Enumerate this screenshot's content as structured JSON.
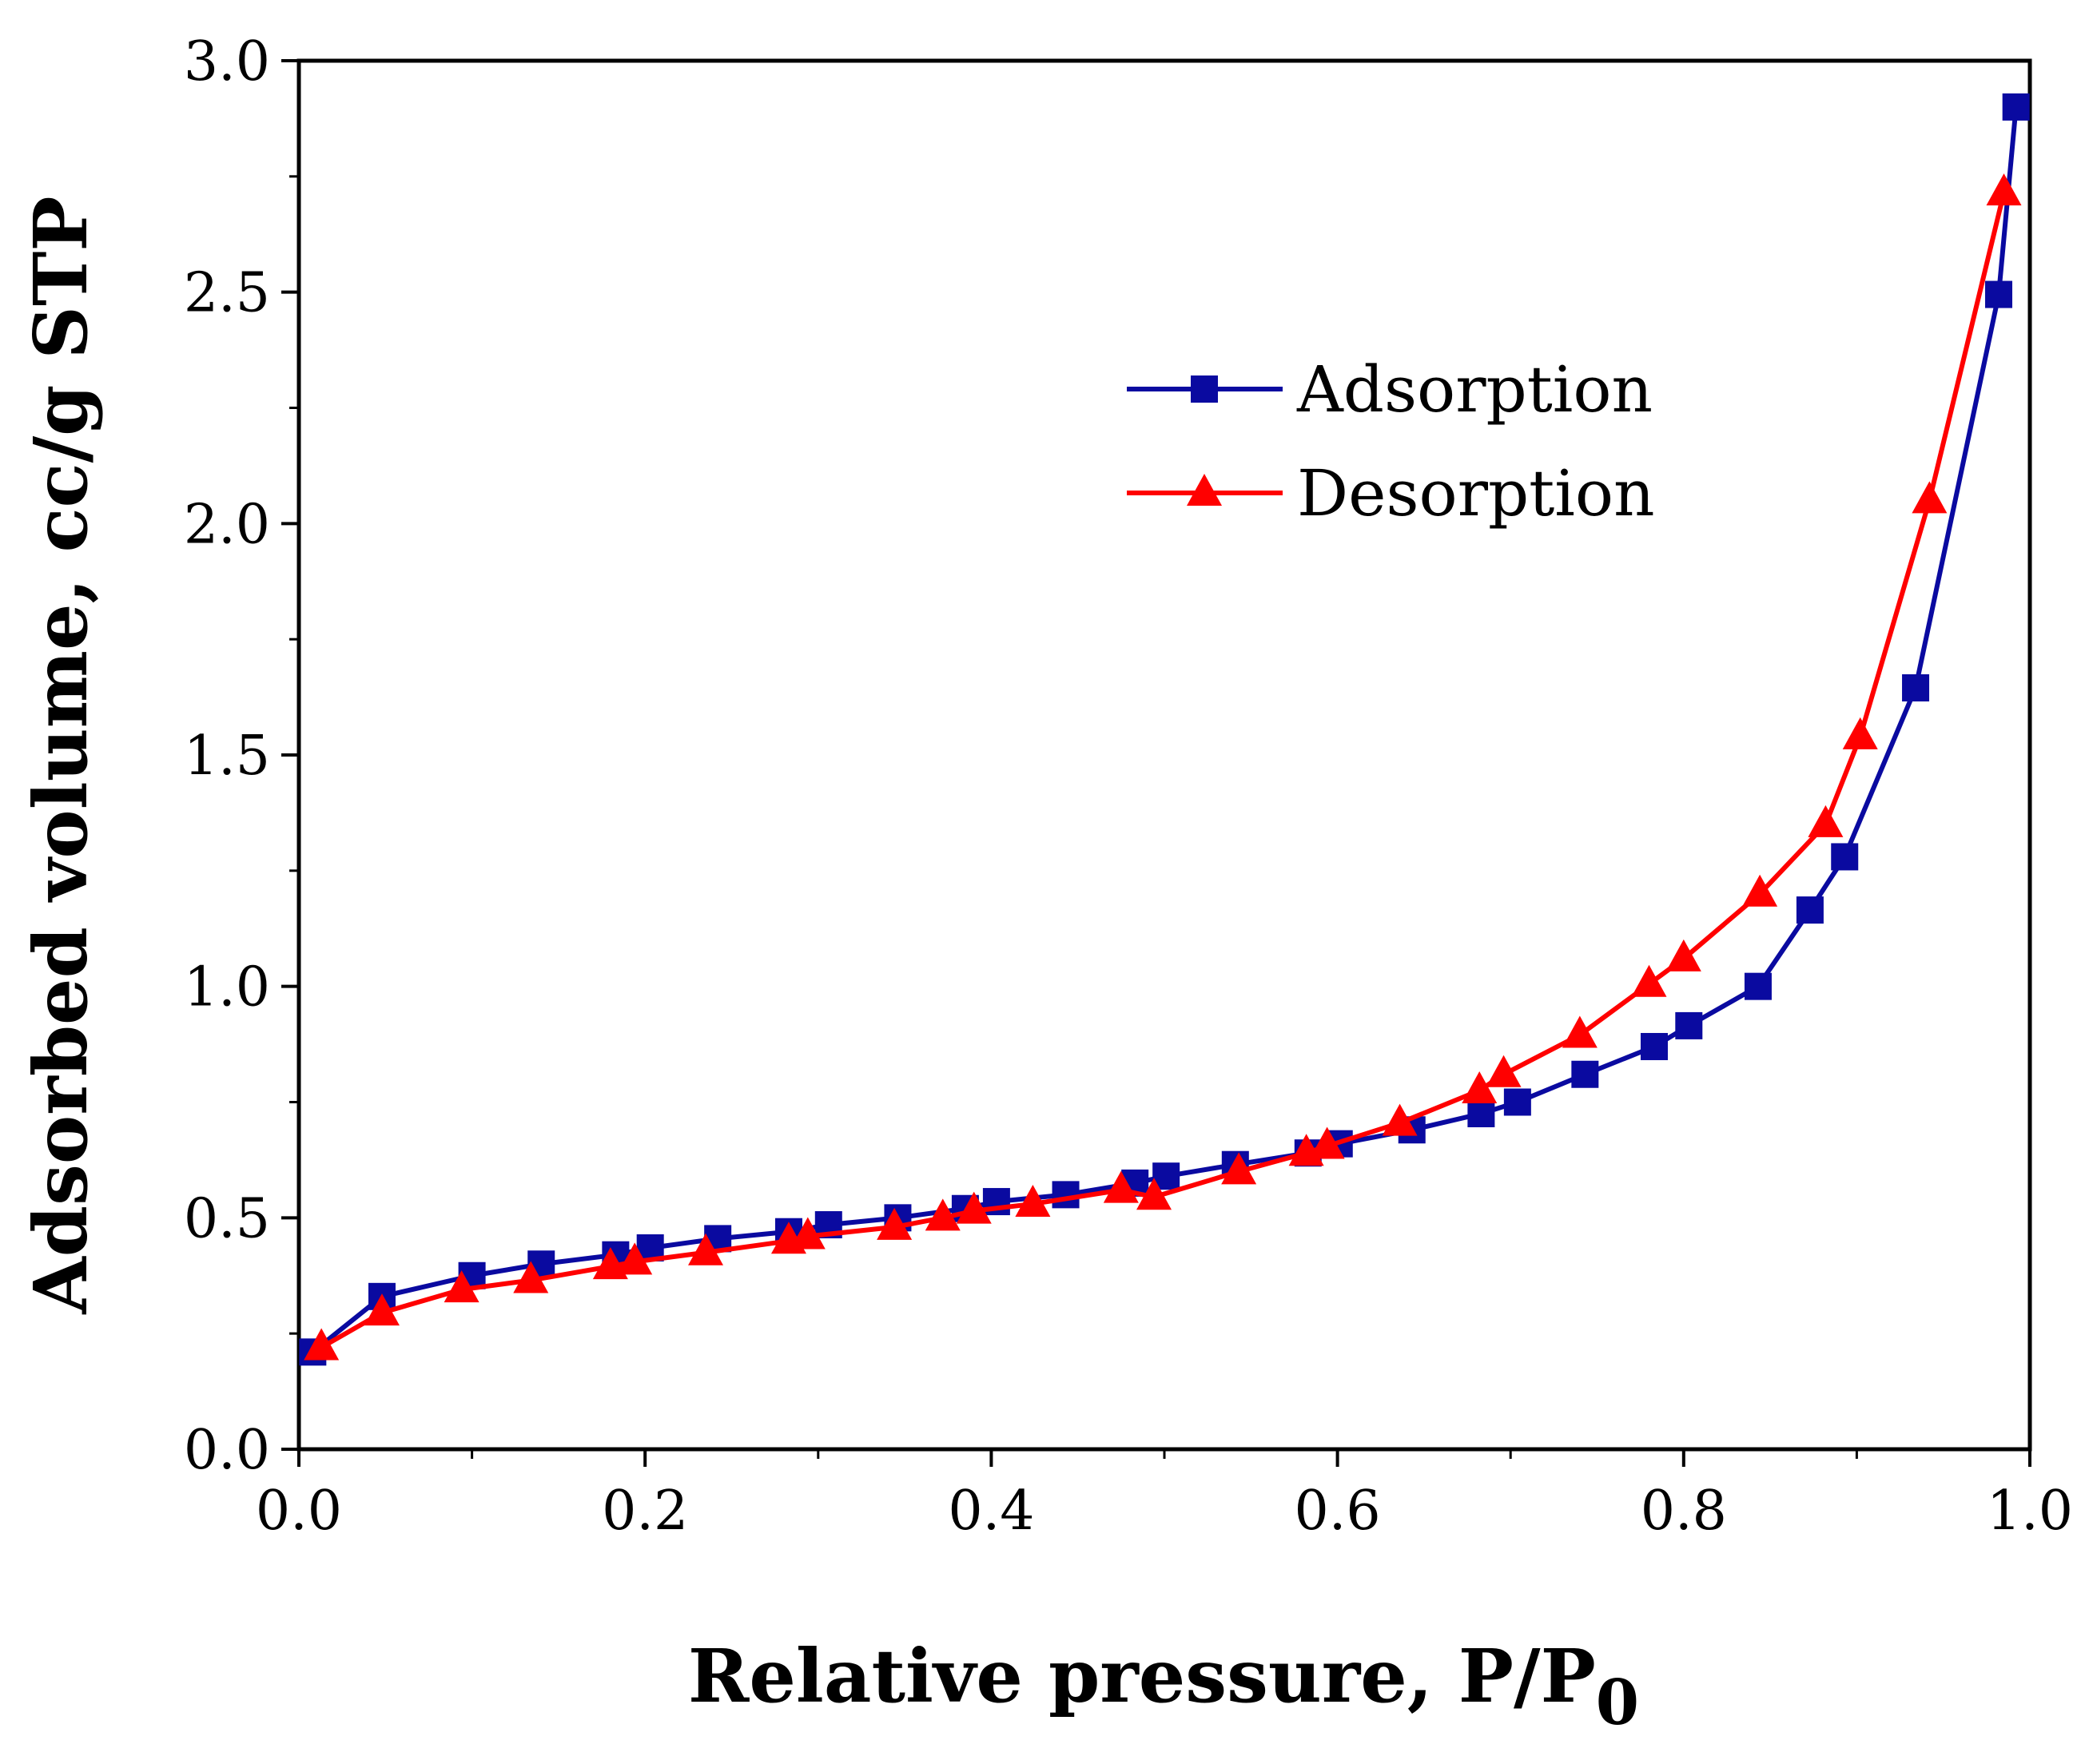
{
  "chart_data": {
    "type": "line",
    "xlabel": "Relative pressure, P/P",
    "xlabel_subscript": "0",
    "ylabel": "Adsorbed volume, cc/g STP",
    "xlim": [
      0.0,
      1.0
    ],
    "ylim": [
      0.0,
      3.0
    ],
    "xticks": [
      "0.0",
      "0.2",
      "0.4",
      "0.6",
      "0.8",
      "1.0"
    ],
    "yticks": [
      "0.0",
      "0.5",
      "1.0",
      "1.5",
      "2.0",
      "2.5",
      "3.0"
    ],
    "grid": false,
    "legend_position": "upper-center",
    "series": [
      {
        "name": "Adsorption",
        "color": "#0a0aa0",
        "marker": "square",
        "points": [
          [
            0.008,
            0.21
          ],
          [
            0.048,
            0.33
          ],
          [
            0.1,
            0.375
          ],
          [
            0.14,
            0.4
          ],
          [
            0.183,
            0.42
          ],
          [
            0.203,
            0.435
          ],
          [
            0.242,
            0.455
          ],
          [
            0.283,
            0.47
          ],
          [
            0.306,
            0.485
          ],
          [
            0.346,
            0.5
          ],
          [
            0.385,
            0.52
          ],
          [
            0.403,
            0.535
          ],
          [
            0.443,
            0.55
          ],
          [
            0.483,
            0.575
          ],
          [
            0.501,
            0.59
          ],
          [
            0.541,
            0.615
          ],
          [
            0.583,
            0.64
          ],
          [
            0.601,
            0.66
          ],
          [
            0.643,
            0.69
          ],
          [
            0.683,
            0.725
          ],
          [
            0.704,
            0.75
          ],
          [
            0.743,
            0.81
          ],
          [
            0.783,
            0.87
          ],
          [
            0.803,
            0.915
          ],
          [
            0.843,
            1.0
          ],
          [
            0.873,
            1.165
          ],
          [
            0.893,
            1.28
          ],
          [
            0.934,
            1.645
          ],
          [
            0.982,
            2.495
          ],
          [
            0.992,
            2.9
          ]
        ]
      },
      {
        "name": "Desorption",
        "color": "#ff0000",
        "marker": "triangle",
        "points": [
          [
            0.013,
            0.22
          ],
          [
            0.048,
            0.295
          ],
          [
            0.094,
            0.345
          ],
          [
            0.134,
            0.365
          ],
          [
            0.18,
            0.395
          ],
          [
            0.194,
            0.405
          ],
          [
            0.235,
            0.425
          ],
          [
            0.283,
            0.45
          ],
          [
            0.294,
            0.46
          ],
          [
            0.344,
            0.48
          ],
          [
            0.372,
            0.5
          ],
          [
            0.39,
            0.515
          ],
          [
            0.424,
            0.53
          ],
          [
            0.475,
            0.56
          ],
          [
            0.494,
            0.545
          ],
          [
            0.543,
            0.6
          ],
          [
            0.582,
            0.64
          ],
          [
            0.594,
            0.655
          ],
          [
            0.636,
            0.705
          ],
          [
            0.682,
            0.775
          ],
          [
            0.696,
            0.81
          ],
          [
            0.74,
            0.895
          ],
          [
            0.78,
            1.005
          ],
          [
            0.8,
            1.06
          ],
          [
            0.844,
            1.2
          ],
          [
            0.882,
            1.35
          ],
          [
            0.902,
            1.54
          ],
          [
            0.942,
            2.05
          ],
          [
            0.985,
            2.715
          ]
        ]
      }
    ]
  }
}
